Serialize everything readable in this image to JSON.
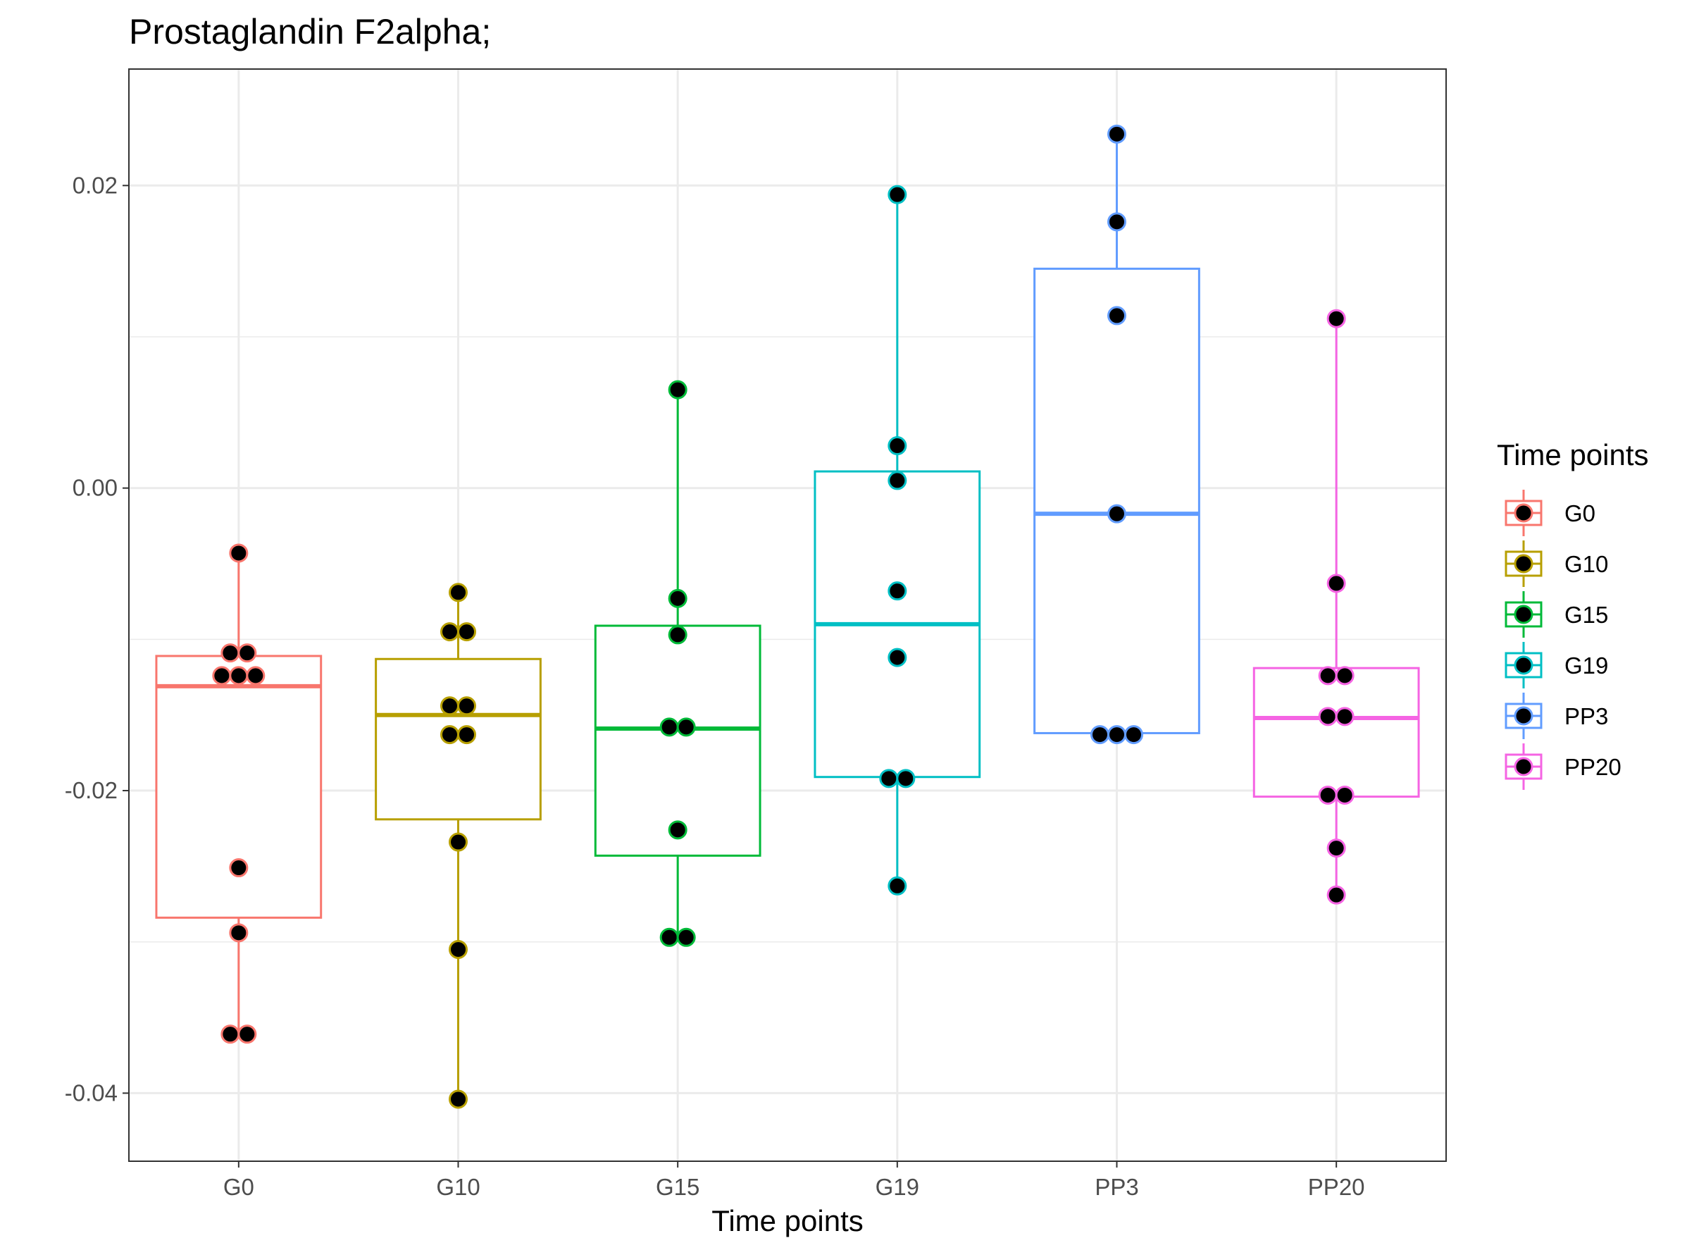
{
  "chart_data": {
    "type": "box",
    "title": "Prostaglandin F2alpha;",
    "xlabel": "Time points",
    "ylabel": "",
    "ylim": [
      -0.0445,
      0.0277
    ],
    "y_ticks": [
      0.02,
      0.0,
      -0.02,
      -0.04
    ],
    "y_tick_labels": [
      "0.02",
      "0.00",
      "-0.02",
      "-0.04"
    ],
    "grid": true,
    "legend": {
      "title": "Time points",
      "position": "right"
    },
    "categories": [
      "G0",
      "G10",
      "G15",
      "G19",
      "PP3",
      "PP20"
    ],
    "series": [
      {
        "name": "G0",
        "color": "#F8766D",
        "box": {
          "q1": -0.0284,
          "median": -0.0131,
          "q3": -0.0111,
          "whisker_low": -0.0361,
          "whisker_high": -0.0043
        },
        "points": [
          -0.0043,
          -0.0109,
          -0.0109,
          -0.0124,
          -0.0124,
          -0.0124,
          -0.0251,
          -0.0294,
          -0.0361,
          -0.0361
        ]
      },
      {
        "name": "G10",
        "color": "#B79F00",
        "box": {
          "q1": -0.0219,
          "median": -0.015,
          "q3": -0.0113,
          "whisker_low": -0.0404,
          "whisker_high": -0.0069
        },
        "points": [
          -0.0069,
          -0.0095,
          -0.0095,
          -0.0144,
          -0.0144,
          -0.0163,
          -0.0163,
          -0.0234,
          -0.0305,
          -0.0404
        ]
      },
      {
        "name": "G15",
        "color": "#00BA38",
        "box": {
          "q1": -0.0243,
          "median": -0.0159,
          "q3": -0.0091,
          "whisker_low": -0.0297,
          "whisker_high": 0.0065
        },
        "points": [
          0.0065,
          -0.0073,
          -0.0097,
          -0.0158,
          -0.0158,
          -0.0226,
          -0.0297,
          -0.0297
        ]
      },
      {
        "name": "G19",
        "color": "#00BFC4",
        "box": {
          "q1": -0.0191,
          "median": -0.009,
          "q3": 0.0011,
          "whisker_low": -0.0263,
          "whisker_high": 0.0194
        },
        "points": [
          0.0194,
          0.0028,
          0.0005,
          -0.0068,
          -0.0112,
          -0.0192,
          -0.0192,
          -0.0263
        ]
      },
      {
        "name": "PP3",
        "color": "#619CFF",
        "box": {
          "q1": -0.0162,
          "median": -0.0017,
          "q3": 0.0145,
          "whisker_low": -0.0162,
          "whisker_high": 0.0234
        },
        "points": [
          0.0234,
          0.0176,
          0.0114,
          -0.0017,
          -0.0163,
          -0.0163,
          -0.0163
        ]
      },
      {
        "name": "PP20",
        "color": "#F564E3",
        "box": {
          "q1": -0.0204,
          "median": -0.0152,
          "q3": -0.0119,
          "whisker_low": -0.0269,
          "whisker_high": 0.0112
        },
        "points": [
          0.0112,
          -0.0063,
          -0.0124,
          -0.0124,
          -0.0151,
          -0.0151,
          -0.0203,
          -0.0203,
          -0.0238,
          -0.0269
        ]
      }
    ]
  }
}
